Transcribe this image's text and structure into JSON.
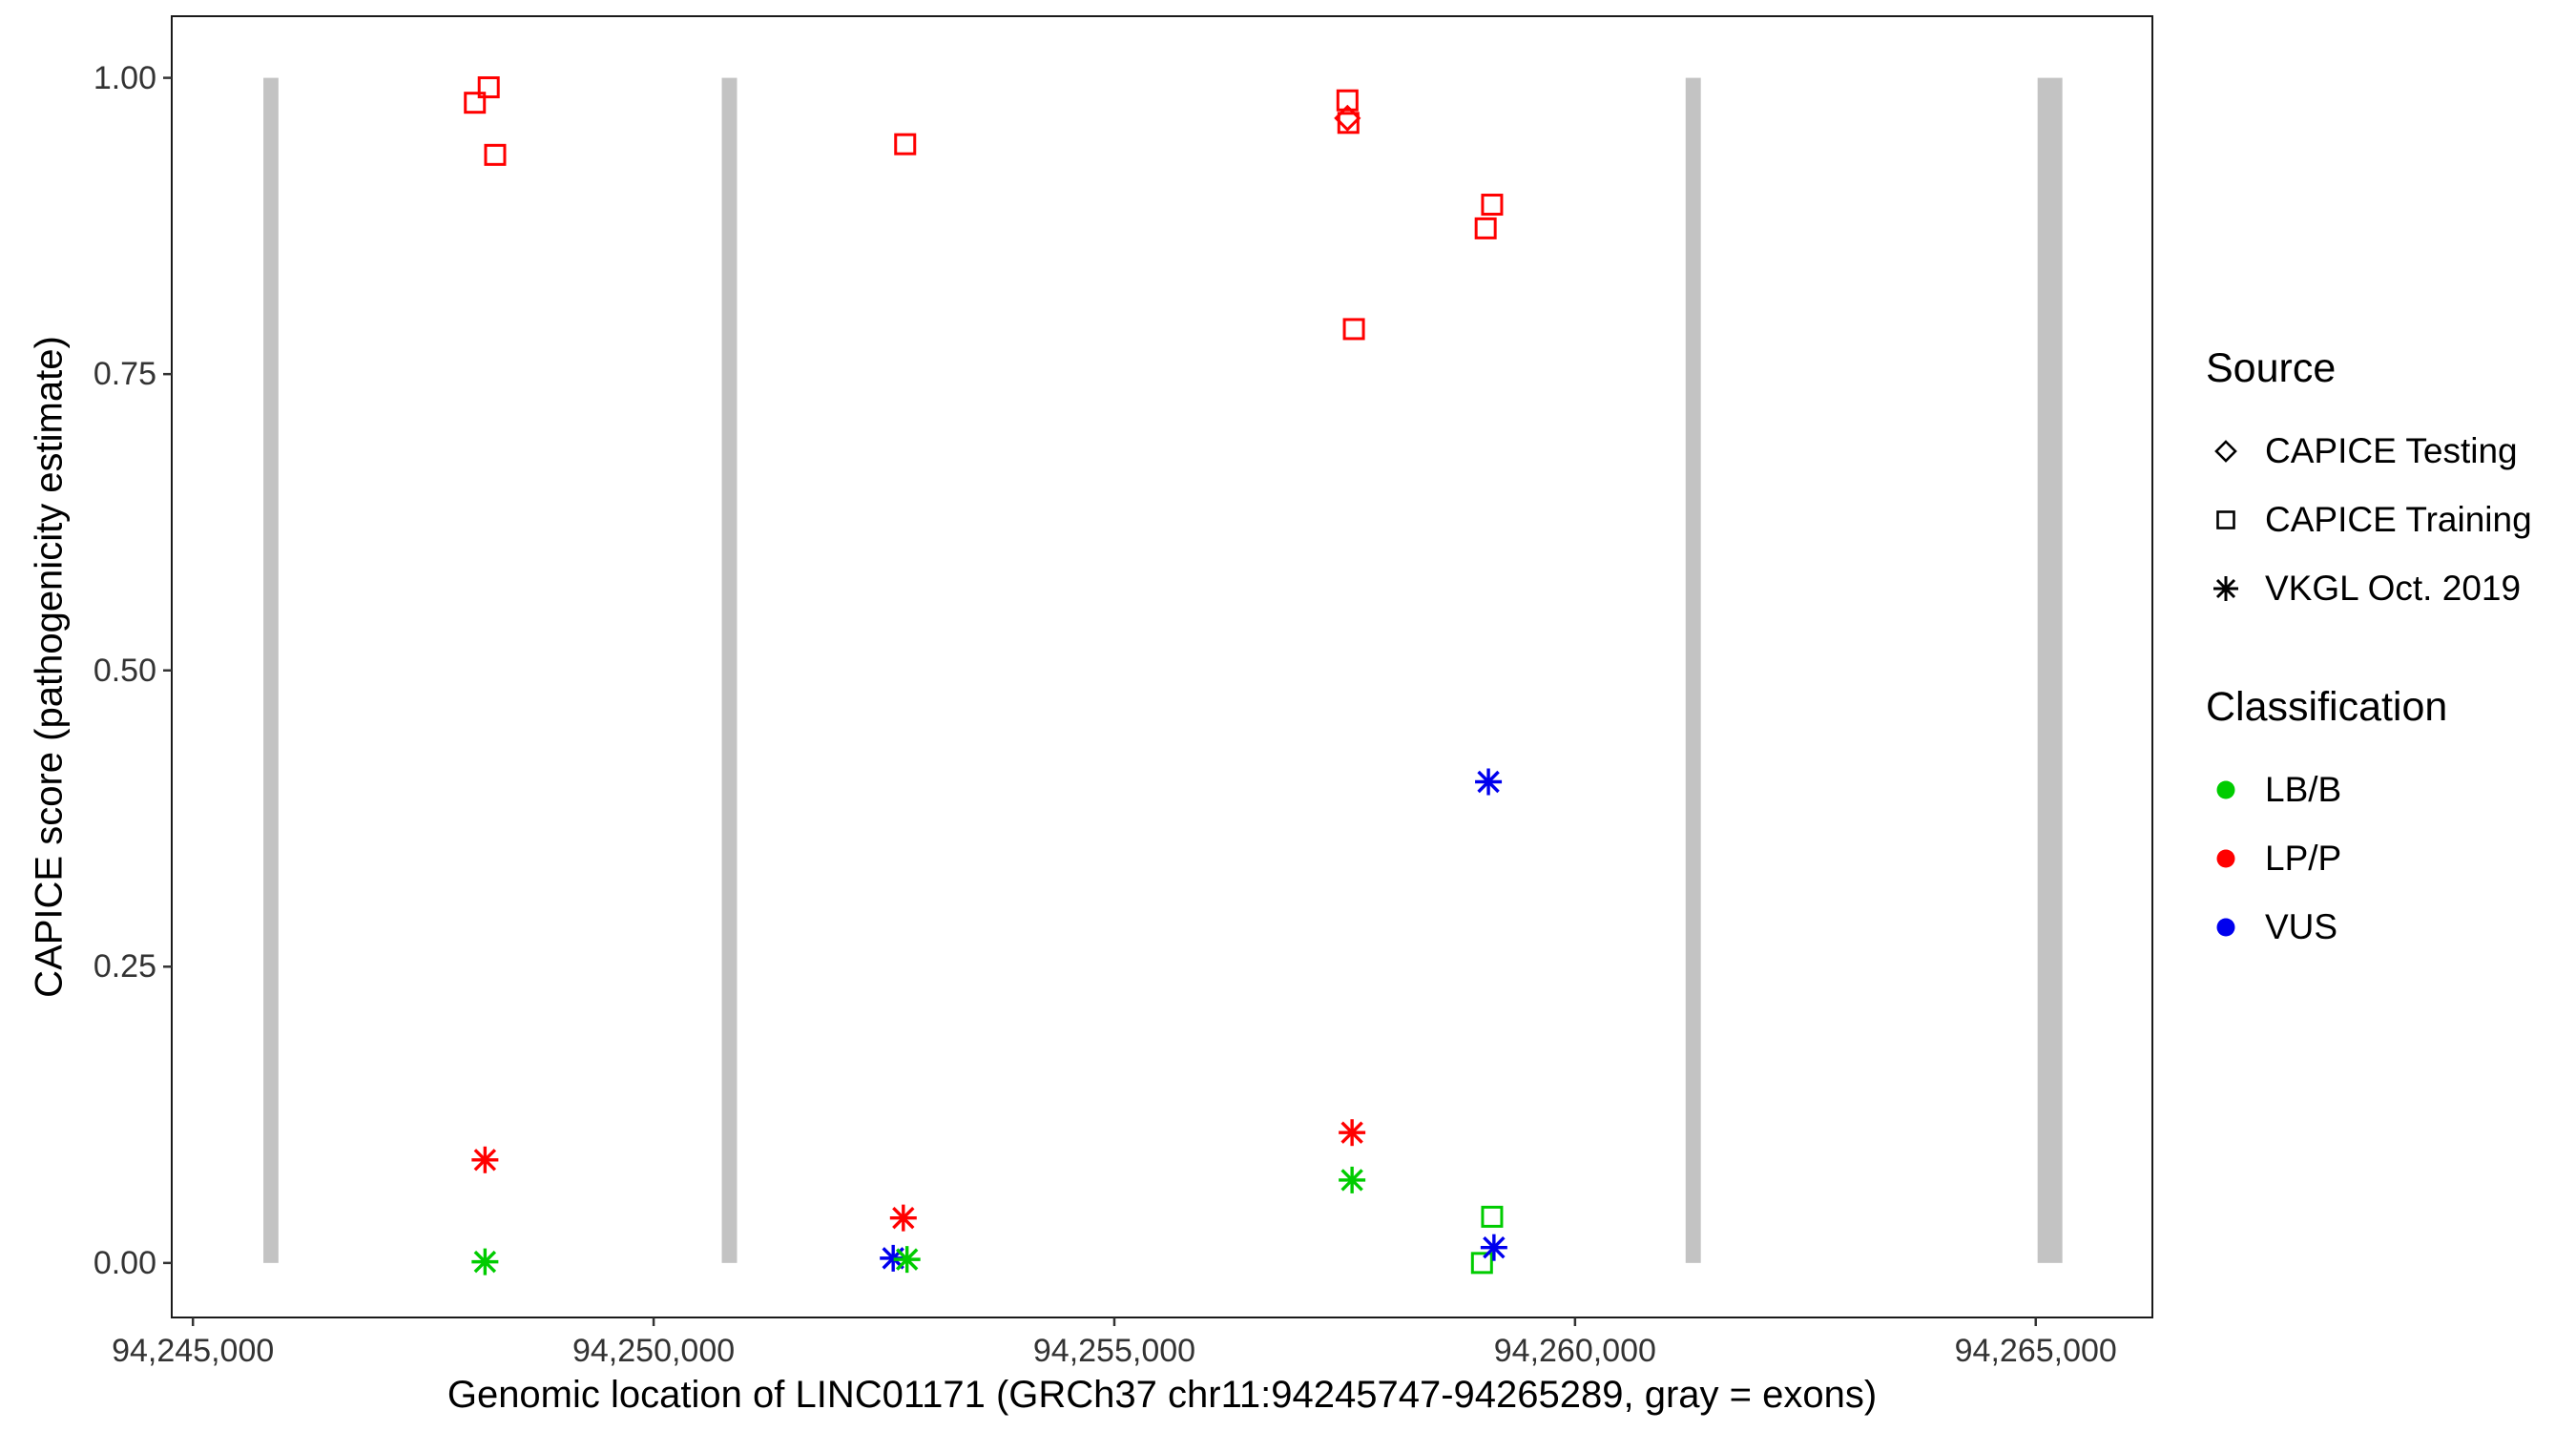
{
  "legend": {
    "source": {
      "title": "Source",
      "items": [
        {
          "label": "CAPICE Testing",
          "shape": "diamond"
        },
        {
          "label": "CAPICE Training",
          "shape": "square"
        },
        {
          "label": "VKGL Oct. 2019",
          "shape": "asterisk"
        }
      ]
    },
    "classification": {
      "title": "Classification",
      "items": [
        {
          "label": "LB/B",
          "color": "#00CC00"
        },
        {
          "label": "LP/P",
          "color": "#FF0000"
        },
        {
          "label": "VUS",
          "color": "#0000EE"
        }
      ]
    }
  },
  "colors": {
    "exon": "#C3C3C3",
    "panel_border": "#1A1A1A",
    "tick": "#333333",
    "tick_text": "#333333",
    "source_glyph": "#000000"
  },
  "chart_data": {
    "type": "scatter",
    "title": "",
    "xlabel": "Genomic location of LINC01171 (GRCh37 chr11:94245747-94265289, gray = exons)",
    "ylabel": "CAPICE score (pathogenicity estimate)",
    "x_domain": [
      94244770,
      94266266
    ],
    "y_domain": [
      -0.046,
      1.052
    ],
    "grid": "off",
    "legend_position": "right",
    "x_ticks": [
      {
        "value": 94245000,
        "label": "94,245,000"
      },
      {
        "value": 94250000,
        "label": "94,250,000"
      },
      {
        "value": 94255000,
        "label": "94,255,000"
      },
      {
        "value": 94260000,
        "label": "94,260,000"
      },
      {
        "value": 94265000,
        "label": "94,265,000"
      }
    ],
    "y_ticks": [
      {
        "value": 0.0,
        "label": "0.00"
      },
      {
        "value": 0.25,
        "label": "0.25"
      },
      {
        "value": 0.5,
        "label": "0.50"
      },
      {
        "value": 0.75,
        "label": "0.75"
      },
      {
        "value": 1.0,
        "label": "1.00"
      }
    ],
    "exons": [
      {
        "start": 94245765,
        "end": 94245928
      },
      {
        "start": 94250740,
        "end": 94250905
      },
      {
        "start": 94261200,
        "end": 94261365
      },
      {
        "start": 94265020,
        "end": 94265289
      }
    ],
    "exon_y_range": [
      0.0,
      1.0
    ],
    "source_shapes": {
      "CAPICE Testing": "diamond",
      "CAPICE Training": "square",
      "VKGL Oct. 2019": "asterisk"
    },
    "classification_colors": {
      "LB/B": "#00CC00",
      "LP/P": "#FF0000",
      "VUS": "#0000EE"
    },
    "points": [
      {
        "x": 94248060,
        "y": 0.979,
        "source": "CAPICE Training",
        "classification": "LP/P"
      },
      {
        "x": 94248210,
        "y": 0.992,
        "source": "CAPICE Training",
        "classification": "LP/P"
      },
      {
        "x": 94248280,
        "y": 0.935,
        "source": "CAPICE Training",
        "classification": "LP/P"
      },
      {
        "x": 94252730,
        "y": 0.944,
        "source": "CAPICE Training",
        "classification": "LP/P"
      },
      {
        "x": 94257530,
        "y": 0.981,
        "source": "CAPICE Training",
        "classification": "LP/P"
      },
      {
        "x": 94257540,
        "y": 0.962,
        "source": "CAPICE Training",
        "classification": "LP/P"
      },
      {
        "x": 94257600,
        "y": 0.788,
        "source": "CAPICE Training",
        "classification": "LP/P"
      },
      {
        "x": 94259100,
        "y": 0.893,
        "source": "CAPICE Training",
        "classification": "LP/P"
      },
      {
        "x": 94259030,
        "y": 0.873,
        "source": "CAPICE Training",
        "classification": "LP/P"
      },
      {
        "x": 94259100,
        "y": 0.039,
        "source": "CAPICE Training",
        "classification": "LB/B"
      },
      {
        "x": 94258990,
        "y": 0.0,
        "source": "CAPICE Training",
        "classification": "LB/B"
      },
      {
        "x": 94257530,
        "y": 0.966,
        "source": "CAPICE Testing",
        "classification": "LP/P"
      },
      {
        "x": 94248170,
        "y": 0.087,
        "source": "VKGL Oct. 2019",
        "classification": "LP/P"
      },
      {
        "x": 94248170,
        "y": 0.001,
        "source": "VKGL Oct. 2019",
        "classification": "LB/B"
      },
      {
        "x": 94252710,
        "y": 0.038,
        "source": "VKGL Oct. 2019",
        "classification": "LP/P"
      },
      {
        "x": 94252600,
        "y": 0.004,
        "source": "VKGL Oct. 2019",
        "classification": "VUS"
      },
      {
        "x": 94252750,
        "y": 0.003,
        "source": "VKGL Oct. 2019",
        "classification": "LB/B"
      },
      {
        "x": 94257580,
        "y": 0.11,
        "source": "VKGL Oct. 2019",
        "classification": "LP/P"
      },
      {
        "x": 94257580,
        "y": 0.07,
        "source": "VKGL Oct. 2019",
        "classification": "LB/B"
      },
      {
        "x": 94259060,
        "y": 0.406,
        "source": "VKGL Oct. 2019",
        "classification": "VUS"
      },
      {
        "x": 94259120,
        "y": 0.013,
        "source": "VKGL Oct. 2019",
        "classification": "VUS"
      }
    ]
  }
}
